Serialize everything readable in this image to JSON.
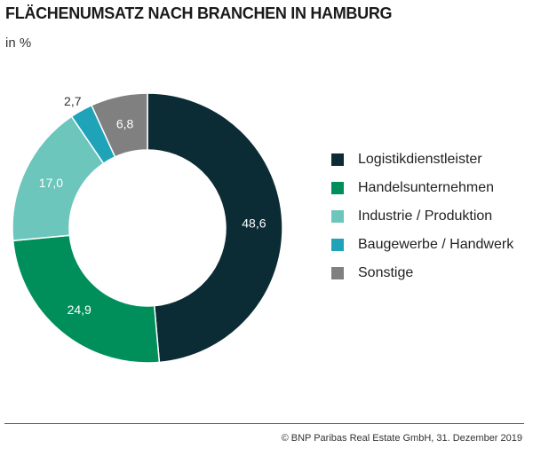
{
  "chart_data": {
    "type": "pie",
    "title": "FLÄCHENUMSATZ NACH BRANCHEN IN HAMBURG",
    "subtitle": "in %",
    "legend_position": "right",
    "slices": [
      {
        "name": "Logistikdienstleister",
        "value": 48.6,
        "label": "48,6",
        "color": "#0b2b35"
      },
      {
        "name": "Handelsunternehmen",
        "value": 24.9,
        "label": "24,9",
        "color": "#008f5a"
      },
      {
        "name": "Industrie / Produktion",
        "value": 17.0,
        "label": "17,0",
        "color": "#6cc6bc"
      },
      {
        "name": "Baugewerbe / Handwerk",
        "value": 2.7,
        "label": "2,7",
        "color": "#1fa3b8"
      },
      {
        "name": "Sonstige",
        "value": 6.8,
        "label": "6,8",
        "color": "#808080"
      }
    ]
  },
  "footer": "© BNP Paribas Real Estate GmbH, 31. Dezember 2019"
}
